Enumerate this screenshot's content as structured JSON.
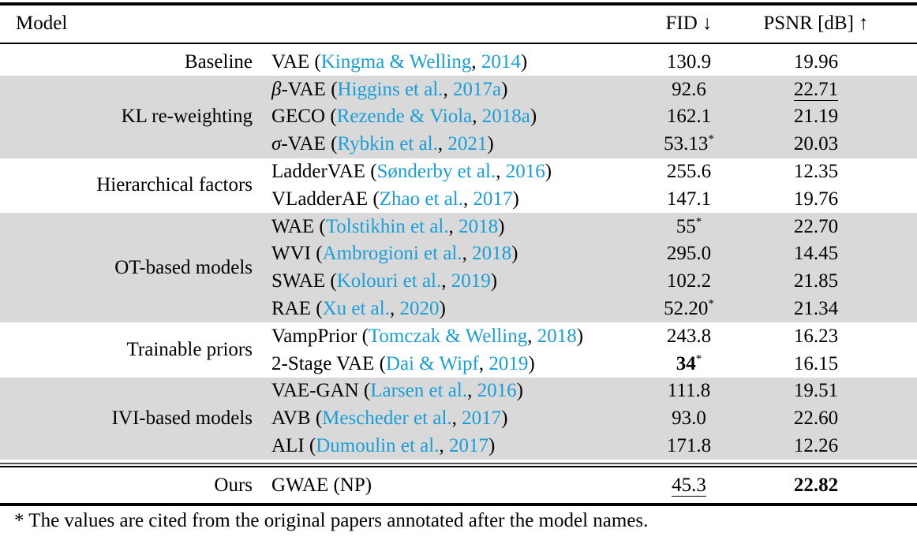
{
  "colors": {
    "citation_link": "#1a9ed8",
    "shaded_band": "#d9d9d9",
    "rule": "#000000"
  },
  "table": {
    "columns": {
      "model": "Model",
      "fid": "FID ↓",
      "psnr": "PSNR [dB] ↑"
    },
    "paren_open": "(",
    "paren_close": ")",
    "cite_separator": ", ",
    "star": "*",
    "groups": [
      {
        "label": "Baseline",
        "shaded": false,
        "rows": [
          {
            "model_italic": "",
            "model": "VAE",
            "cite_authors": "Kingma & Welling",
            "cite_year": "2014",
            "fid": "130.9",
            "psnr": "19.96"
          }
        ]
      },
      {
        "label": "KL re-weighting",
        "shaded": true,
        "rows": [
          {
            "model_italic": "β",
            "model": "-VAE",
            "cite_authors": "Higgins et al.",
            "cite_year": "2017a",
            "fid": "92.6",
            "psnr": "22.71",
            "psnr_underline": true
          },
          {
            "model_italic": "",
            "model": "GECO",
            "cite_authors": "Rezende & Viola",
            "cite_year": "2018a",
            "fid": "162.1",
            "psnr": "21.19"
          },
          {
            "model_italic": "σ",
            "model": "-VAE",
            "cite_authors": "Rybkin et al.",
            "cite_year": "2021",
            "fid": "53.13",
            "fid_star": true,
            "psnr": "20.03"
          }
        ]
      },
      {
        "label": "Hierarchical factors",
        "shaded": false,
        "rows": [
          {
            "model_italic": "",
            "model": "LadderVAE",
            "cite_authors": "Sønderby et al.",
            "cite_year": "2016",
            "fid": "255.6",
            "psnr": "12.35"
          },
          {
            "model_italic": "",
            "model": "VLadderAE",
            "cite_authors": "Zhao et al.",
            "cite_year": "2017",
            "fid": "147.1",
            "psnr": "19.76"
          }
        ]
      },
      {
        "label": "OT-based models",
        "shaded": true,
        "rows": [
          {
            "model_italic": "",
            "model": "WAE",
            "cite_authors": "Tolstikhin et al.",
            "cite_year": "2018",
            "fid": "55",
            "fid_star": true,
            "psnr": "22.70"
          },
          {
            "model_italic": "",
            "model": "WVI",
            "cite_authors": "Ambrogioni et al.",
            "cite_year": "2018",
            "fid": "295.0",
            "psnr": "14.45"
          },
          {
            "model_italic": "",
            "model": "SWAE",
            "cite_authors": "Kolouri et al.",
            "cite_year": "2019",
            "fid": "102.2",
            "psnr": "21.85"
          },
          {
            "model_italic": "",
            "model": "RAE",
            "cite_authors": "Xu et al.",
            "cite_year": "2020",
            "fid": "52.20",
            "fid_star": true,
            "psnr": "21.34"
          }
        ]
      },
      {
        "label": "Trainable priors",
        "shaded": false,
        "rows": [
          {
            "model_italic": "",
            "model": "VampPrior",
            "cite_authors": "Tomczak & Welling",
            "cite_year": "2018",
            "fid": "243.8",
            "psnr": "16.23"
          },
          {
            "model_italic": "",
            "model": "2-Stage VAE",
            "cite_authors": "Dai & Wipf",
            "cite_year": "2019",
            "fid": "34",
            "fid_bold": true,
            "fid_star": true,
            "psnr": "16.15"
          }
        ]
      },
      {
        "label": "IVI-based models",
        "shaded": true,
        "rows": [
          {
            "model_italic": "",
            "model": "VAE-GAN",
            "cite_authors": "Larsen et al.",
            "cite_year": "2016",
            "fid": "111.8",
            "psnr": "19.51"
          },
          {
            "model_italic": "",
            "model": "AVB",
            "cite_authors": "Mescheder et al.",
            "cite_year": "2017",
            "fid": "93.0",
            "psnr": "22.60"
          },
          {
            "model_italic": "",
            "model": "ALI",
            "cite_authors": "Dumoulin et al.",
            "cite_year": "2017",
            "fid": "171.8",
            "psnr": "12.26"
          }
        ]
      }
    ],
    "ours": {
      "label": "Ours",
      "model": "GWAE (NP)",
      "fid": "45.3",
      "fid_underline": true,
      "psnr": "22.82",
      "psnr_bold": true
    },
    "footnote": "* The values are cited from the original papers annotated after the model names."
  }
}
